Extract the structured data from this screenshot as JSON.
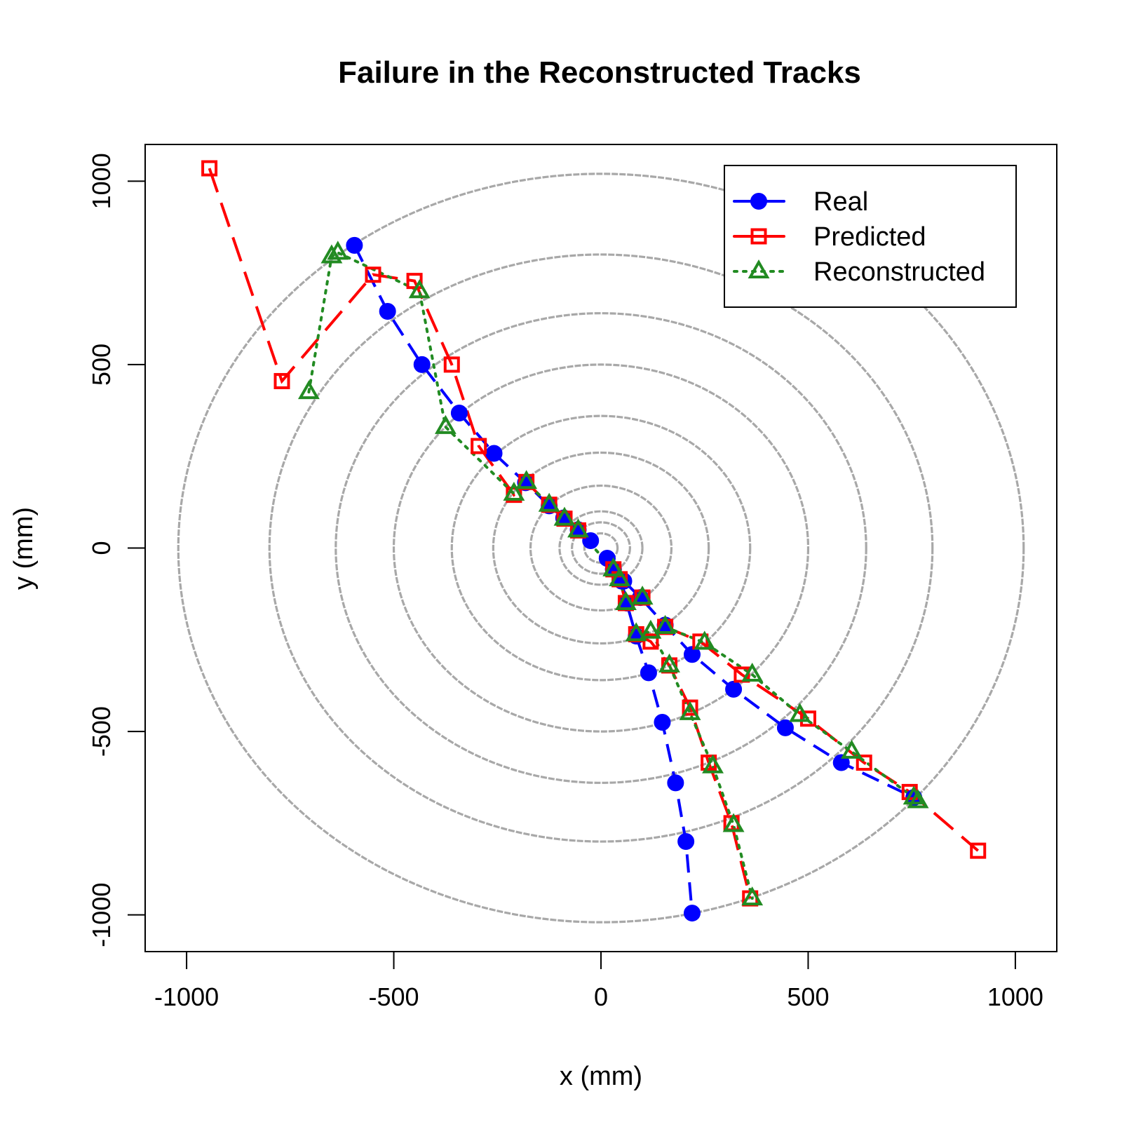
{
  "chart_data": {
    "type": "line",
    "title": "Failure in the Reconstructed Tracks",
    "xlabel": "x (mm)",
    "ylabel": "y (mm)",
    "xlim": [
      -1100,
      1100
    ],
    "ylim": [
      -1100,
      1100
    ],
    "xticks": [
      "-1000",
      "-500",
      "0",
      "500",
      "1000"
    ],
    "yticks": [
      "-1000",
      "-500",
      "0",
      "500",
      "1000"
    ],
    "xtick_values": [
      -1000,
      -500,
      0,
      500,
      1000
    ],
    "ytick_values": [
      -1000,
      -500,
      0,
      500,
      1000
    ],
    "grid": false,
    "legend_position": "top-right",
    "detector_layer_radii": [
      40,
      70,
      100,
      170,
      260,
      360,
      500,
      640,
      800,
      1020
    ],
    "detector_layer_color": "#a8a8a8",
    "series": [
      {
        "name": "Real",
        "color": "#0000ff",
        "marker": "filled-circle",
        "line": "dashed",
        "tracks": [
          [
            [
              -595,
              825
            ],
            [
              -515,
              645
            ],
            [
              -432,
              500
            ],
            [
              -342,
              368
            ],
            [
              -258,
              258
            ],
            [
              -182,
              178
            ],
            [
              -125,
              115
            ],
            [
              -90,
              82
            ],
            [
              -55,
              50
            ],
            [
              -25,
              20
            ]
          ],
          [
            [
              15,
              -28
            ],
            [
              30,
              -58
            ],
            [
              50,
              -90
            ],
            [
              62,
              -150
            ],
            [
              85,
              -240
            ],
            [
              115,
              -340
            ],
            [
              148,
              -475
            ],
            [
              180,
              -640
            ],
            [
              205,
              -800
            ],
            [
              220,
              -995
            ]
          ],
          [
            [
              15,
              -28
            ],
            [
              30,
              -58
            ],
            [
              55,
              -90
            ],
            [
              95,
              -135
            ],
            [
              155,
              -210
            ],
            [
              220,
              -290
            ],
            [
              320,
              -385
            ],
            [
              445,
              -490
            ],
            [
              580,
              -585
            ],
            [
              755,
              -680
            ]
          ]
        ]
      },
      {
        "name": "Predicted",
        "color": "#ff0000",
        "marker": "open-square",
        "line": "long-dash",
        "tracks": [
          [
            [
              -945,
              1035
            ],
            [
              -770,
              455
            ],
            [
              -550,
              745
            ],
            [
              -450,
              728
            ],
            [
              -360,
              500
            ],
            [
              -295,
              278
            ],
            [
              -210,
              145
            ],
            [
              -180,
              180
            ],
            [
              -125,
              118
            ],
            [
              -88,
              80
            ],
            [
              -55,
              48
            ],
            [
              30,
              -58
            ],
            [
              45,
              -85
            ],
            [
              60,
              -150
            ],
            [
              100,
              -135
            ]
          ],
          [
            [
              85,
              -235
            ],
            [
              120,
              -255
            ],
            [
              165,
              -320
            ],
            [
              215,
              -435
            ],
            [
              260,
              -585
            ],
            [
              315,
              -750
            ],
            [
              360,
              -955
            ]
          ],
          [
            [
              155,
              -215
            ],
            [
              240,
              -255
            ],
            [
              340,
              -345
            ],
            [
              500,
              -465
            ],
            [
              635,
              -585
            ],
            [
              745,
              -665
            ],
            [
              910,
              -825
            ]
          ]
        ]
      },
      {
        "name": "Reconstructed",
        "color": "#228b22",
        "marker": "open-triangle",
        "line": "dotted",
        "tracks": [
          [
            [
              -705,
              425
            ],
            [
              -650,
              795
            ],
            [
              -635,
              805
            ],
            [
              -438,
              700
            ],
            [
              -375,
              330
            ],
            [
              -210,
              148
            ],
            [
              -180,
              180
            ],
            [
              -125,
              118
            ],
            [
              -88,
              80
            ],
            [
              -55,
              48
            ],
            [
              30,
              -58
            ],
            [
              45,
              -85
            ],
            [
              60,
              -150
            ],
            [
              100,
              -135
            ]
          ],
          [
            [
              85,
              -235
            ],
            [
              120,
              -228
            ],
            [
              165,
              -320
            ],
            [
              215,
              -450
            ],
            [
              270,
              -595
            ],
            [
              320,
              -755
            ],
            [
              365,
              -955
            ]
          ],
          [
            [
              155,
              -215
            ],
            [
              250,
              -258
            ],
            [
              365,
              -345
            ],
            [
              480,
              -455
            ],
            [
              605,
              -555
            ],
            [
              755,
              -680
            ],
            [
              765,
              -690
            ]
          ]
        ]
      }
    ]
  }
}
